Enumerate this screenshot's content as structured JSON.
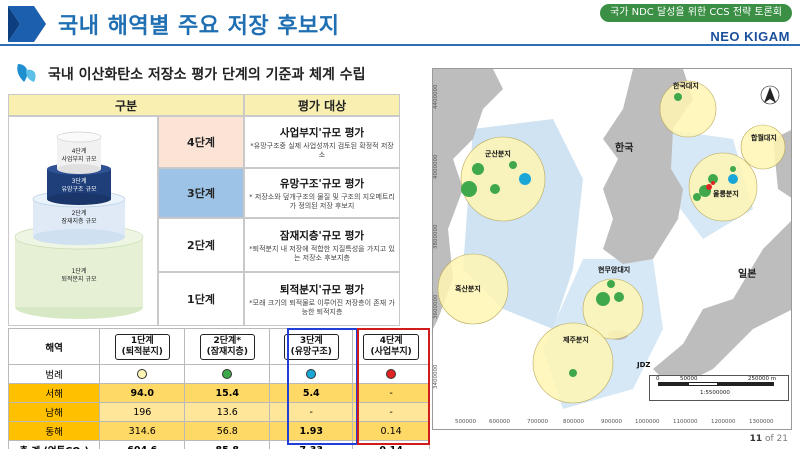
{
  "header": {
    "title": "국내 해역별 주요 저장 후보지",
    "badge": "국가 NDC 달성을 위한 CCS 전략 토론회",
    "brand": "NEO KIGAM"
  },
  "subtitle": "국내 이산화탄소 저장소 평가 단계의 기준과 체계 수립",
  "assessment": {
    "col_headers": [
      "구분",
      "평가 대상"
    ],
    "pyramid_labels": [
      "4단계\n사업부지 규모",
      "3단계\n유망구조 규모",
      "2단계\n잠재지층 규모",
      "1단계\n퇴적분지 규모"
    ],
    "rows": [
      {
        "stage": "4단계",
        "title": "사업부지'규모 평가",
        "desc": "*유망구조중 실제 사업성까지 검토된 확정적 저장소",
        "color": "#fbe3d6"
      },
      {
        "stage": "3단계",
        "title": "유망구조'규모 평가",
        "desc": "* 저장소와 덮개구조의 물질 및 구조의 지오메트리가 정의된 저장 후보지",
        "color": "#9dc3e6"
      },
      {
        "stage": "2단계",
        "title": "잠재지층'규모 평가",
        "desc": "*퇴적분지 내 저장에 적합한 지질특성을 가지고 있는 저장소 후보지층",
        "color": "#ffffff"
      },
      {
        "stage": "1단계",
        "title": "퇴적분지'규모 평가",
        "desc": "*모래 크기의 퇴적물로 이루어진 저장층이 존재 가능한 퇴적지층",
        "color": "#ffffff"
      }
    ]
  },
  "summary": {
    "corner": "해역",
    "columns": [
      "1단계\n(퇴적분지)",
      "2단계*\n(잠재지층)",
      "3단계\n(유망구조)",
      "4단계\n(사업부지)"
    ],
    "legend_label": "범례",
    "legend_colors": [
      "#fff6b3",
      "#3fa84a",
      "#1aa7d8",
      "#e02424"
    ],
    "rows": [
      {
        "label": "서해",
        "values": [
          "94.0",
          "15.4",
          "5.4",
          "-"
        ]
      },
      {
        "label": "남해",
        "values": [
          "196",
          "13.6",
          "-",
          "-"
        ]
      },
      {
        "label": "동해",
        "values": [
          "314.6",
          "56.8",
          "1.93",
          "0.14"
        ]
      }
    ],
    "total": {
      "label": "총 계 (억톤CO₂)",
      "values": [
        "604.6",
        "85.8",
        "7.33",
        "0.14"
      ]
    }
  },
  "map": {
    "country_korea": "한국",
    "country_japan": "일본",
    "basins": [
      "한국대지",
      "군산분지",
      "흑산분지",
      "현무암대지",
      "제주분지",
      "울릉분지",
      "합월대지"
    ],
    "jdz": "JDZ",
    "scale": {
      "ticks": [
        "0",
        "50000",
        "250000 m"
      ],
      "ratio": "1:5500000"
    },
    "y_ticks": [
      "4400000",
      "4000000",
      "3800000",
      "3600000",
      "3400000"
    ],
    "x_ticks": [
      "500000",
      "600000",
      "700000",
      "800000",
      "900000",
      "1000000",
      "1100000",
      "1200000",
      "1300000"
    ]
  },
  "page": {
    "current": "11",
    "total": "of 21"
  }
}
